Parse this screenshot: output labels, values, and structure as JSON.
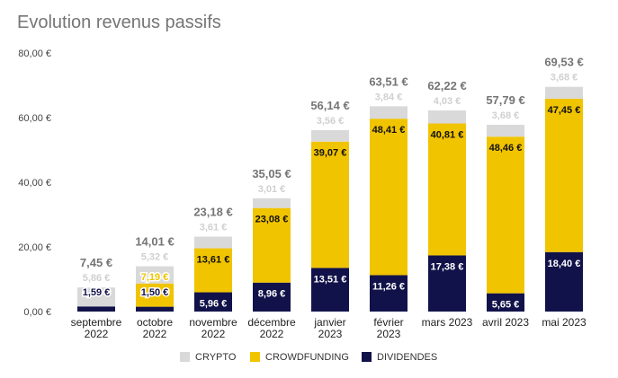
{
  "chart_data": {
    "type": "bar",
    "stacked": true,
    "title": "Evolution revenus passifs",
    "categories": [
      [
        "septembre",
        "2022"
      ],
      [
        "octobre",
        "2022"
      ],
      [
        "novembre",
        "2022"
      ],
      [
        "décembre",
        "2022"
      ],
      [
        "janvier",
        "2023"
      ],
      [
        "février",
        "2023"
      ],
      [
        "mars 2023"
      ],
      [
        "avril 2023"
      ],
      [
        "mai 2023"
      ]
    ],
    "series": [
      {
        "name": "DIVIDENDES",
        "color": "#12124a",
        "values": [
          1.59,
          1.5,
          5.96,
          8.96,
          13.51,
          11.26,
          17.38,
          5.65,
          18.4
        ]
      },
      {
        "name": "CROWDFUNDING",
        "color": "#f1c400",
        "values": [
          0,
          7.19,
          13.61,
          23.08,
          39.07,
          48.41,
          40.81,
          48.46,
          47.45
        ]
      },
      {
        "name": "CRYPTO",
        "color": "#d9d9d9",
        "values": [
          5.86,
          5.32,
          3.61,
          3.01,
          3.56,
          3.84,
          4.03,
          3.68,
          3.68
        ]
      }
    ],
    "totals": [
      7.45,
      14.01,
      23.18,
      35.05,
      56.14,
      63.51,
      62.22,
      57.79,
      69.53
    ],
    "ylim": [
      0,
      80
    ],
    "yticks": [
      "0,00 €",
      "20,00 €",
      "40,00 €",
      "60,00 €",
      "80,00 €"
    ],
    "yticks_values": [
      0,
      20,
      40,
      60,
      80
    ],
    "currency": "€",
    "legend_order": [
      "CRYPTO",
      "CROWDFUNDING",
      "DIVIDENDES"
    ],
    "legend_position": "bottom",
    "grid": false
  }
}
